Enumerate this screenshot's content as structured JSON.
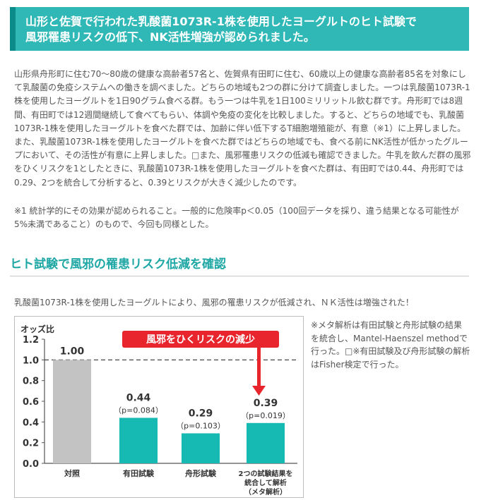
{
  "header": {
    "line1": "山形と佐賀で行われた乳酸菌1073R-1株を使用したヨーグルトのヒト試験で",
    "line2": "風邪罹患リスクの低下、NK活性増強が認められました。"
  },
  "body": {
    "paragraph1": "山形県舟形町に住む70〜80歳の健康な高齢者57名と、佐賀県有田町に住む、60歳以上の健康な高齢者85名を対象にして乳酸菌の免疫システムへの働きを調べました。どちらの地域も2つの群に分けて調査しました。一つは乳酸菌1073R-1株を使用したヨーグルトを1日90グラム食べる群。もう一つは牛乳を1日100ミリリットル飲む群です。舟形町では8週間、有田町では12週間継続して食べてもらい、体調や免疫の変化を比較しました。すると、どちらの地域でも、乳酸菌1073R-1株を使用したヨーグルトを食べた群では、加齢に伴い低下するT細胞増殖能が、有意（※1）に上昇しました。また、乳酸菌1073R-1株を使用したヨーグルトを食べた群ではどちらの地域でも、食べる前にNK活性が低かったグループにおいて、その活性が有意に上昇しました。□また、風邪罹患リスクの低減も確認できました。牛乳を飲んだ群の風邪をひくリスクを1としたときに、乳酸菌1073R-1株を使用したヨーグルトを食べた群は、有田町では0.44、舟形町では0.29、2つを統合して分析すると、0.39とリスクが大きく減少したのです。",
    "paragraph2": "※1 統計学的にその効果が認められること。一般的に危険率p＜0.05（100回データを採り、違う結果となる可能性が5%未満であること）のもので、今回も同様とした。"
  },
  "section": {
    "title": "ヒト試験で風邪の罹患リスク低減を確認",
    "intro": "乳酸菌1073R-1株を使用したヨーグルトにより、風邪の罹患リスクが低減され、ＮＫ活性は増強された！"
  },
  "note": {
    "text": "※メタ解析は有田試験と舟形試験の結果を統合し、Mantel-Haenszel methodで行った。□※有田試験及び舟形試験の解析はFisher検定で行った。"
  },
  "chart_data": {
    "type": "bar",
    "ylabel": "オッズ比",
    "ylim": [
      0,
      1.2
    ],
    "yticks": [
      "0.0",
      "0.2",
      "0.4",
      "0.6",
      "0.8",
      "1.0",
      "1.2"
    ],
    "reference_line": 1.0,
    "categories": [
      "対照",
      "有田試験",
      "舟形試験",
      "2つの試験結果を|統合して解析|（メタ解析）"
    ],
    "values": [
      1.0,
      0.44,
      0.29,
      0.39
    ],
    "value_labels": [
      "1.00",
      "0.44",
      "0.29",
      "0.39"
    ],
    "p_labels": [
      "",
      "（p=0.084）",
      "（p=0.103）",
      "（p=0.019）"
    ],
    "bar_colors": [
      "#c3c3c3",
      "#17b9b3",
      "#17b9b3",
      "#17b9b3"
    ],
    "annotation": "風邪をひくリスクの減少",
    "annotation_color": "#e8242c"
  }
}
